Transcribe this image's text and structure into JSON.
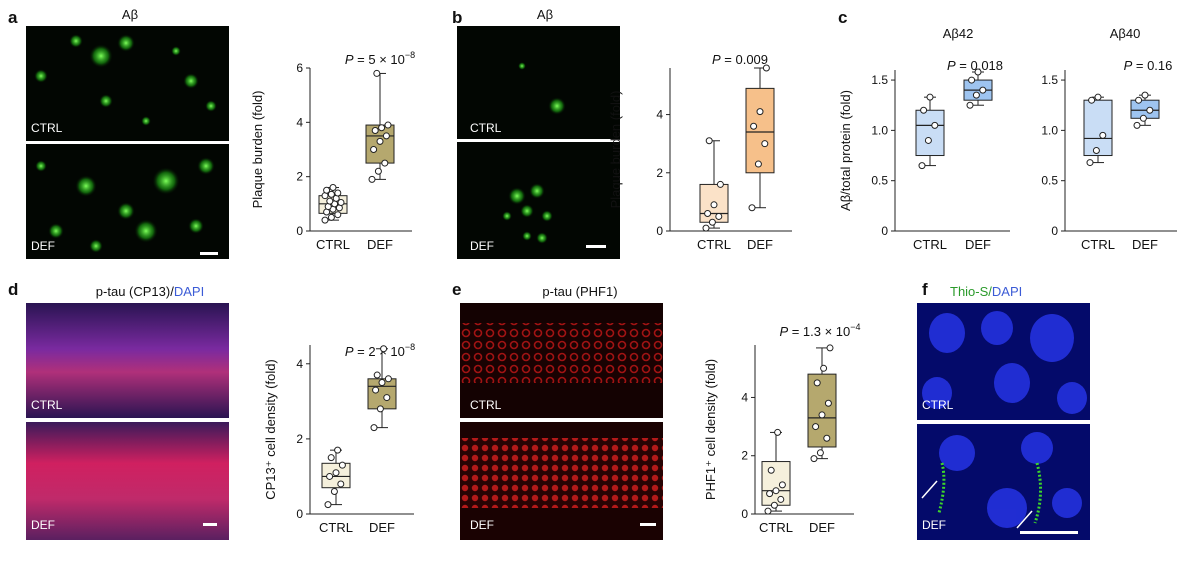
{
  "panels": {
    "a": {
      "letter": "a",
      "title": "Aβ",
      "label_top": "CTRL",
      "label_bottom": "DEF"
    },
    "b": {
      "letter": "b",
      "title": "Aβ",
      "label_top": "CTRL",
      "label_bottom": "DEF"
    },
    "c": {
      "letter": "c"
    },
    "d": {
      "letter": "d",
      "title_main": "p-tau (CP13)/",
      "title_dapi": "DAPI",
      "label_top": "CTRL",
      "label_bottom": "DEF"
    },
    "e": {
      "letter": "e",
      "title": "p-tau (PHF1)",
      "label_top": "CTRL",
      "label_bottom": "DEF"
    },
    "f": {
      "letter": "f",
      "title_thio": "Thio-S/",
      "title_dapi": "DAPI",
      "label_top": "CTRL",
      "label_bottom": "DEF"
    }
  },
  "colors": {
    "green_channel": "#37e020",
    "red_channel": "#e02020",
    "blue_channel": "#2d3cff",
    "dapi_text": "#3b5bd6",
    "thio_text": "#2a9a2a"
  },
  "chart_data": [
    {
      "id": "a",
      "type": "box",
      "ylabel": "Plaque burden (fold)",
      "categories": [
        "CTRL",
        "DEF"
      ],
      "ylim": [
        0,
        6
      ],
      "yticks": [
        0,
        2,
        4,
        6
      ],
      "pvalue": "P = 5 × 10",
      "pvalue_exp": "−8",
      "fill_colors": [
        "#f5f0dc",
        "#b5a86e"
      ],
      "boxes": [
        {
          "min": 0.4,
          "q1": 0.65,
          "median": 1.0,
          "q3": 1.3,
          "max": 1.6,
          "points": [
            0.4,
            0.5,
            0.6,
            0.7,
            0.8,
            0.85,
            0.9,
            1.0,
            1.05,
            1.1,
            1.2,
            1.3,
            1.35,
            1.4,
            1.5,
            1.6
          ]
        },
        {
          "min": 1.9,
          "q1": 2.5,
          "median": 3.5,
          "q3": 3.9,
          "max": 5.8,
          "points": [
            1.9,
            2.2,
            2.5,
            3.0,
            3.3,
            3.5,
            3.7,
            3.8,
            3.9,
            5.8
          ]
        }
      ]
    },
    {
      "id": "b",
      "type": "box",
      "ylabel": "Plaque burden (fold)",
      "categories": [
        "CTRL",
        "DEF"
      ],
      "ylim": [
        0,
        5.6
      ],
      "yticks": [
        0,
        2,
        4
      ],
      "pvalue": "P = 0.009",
      "pvalue_exp": "",
      "fill_colors": [
        "#fbe2c8",
        "#f6c08a"
      ],
      "boxes": [
        {
          "min": 0.1,
          "q1": 0.3,
          "median": 0.6,
          "q3": 1.6,
          "max": 3.1,
          "points": [
            0.1,
            0.3,
            0.5,
            0.6,
            0.9,
            1.6,
            3.1
          ]
        },
        {
          "min": 0.8,
          "q1": 2.0,
          "median": 3.4,
          "q3": 4.9,
          "max": 5.6,
          "points": [
            0.8,
            2.3,
            3.0,
            3.6,
            4.1,
            5.6
          ]
        }
      ]
    },
    {
      "id": "c1",
      "type": "box",
      "title": "Aβ42",
      "ylabel": "Aβ/total protein (fold)",
      "categories": [
        "CTRL",
        "DEF"
      ],
      "ylim": [
        0,
        1.6
      ],
      "yticks": [
        0,
        0.5,
        1.0,
        1.5
      ],
      "pvalue": "P = 0.018",
      "pvalue_exp": "",
      "fill_colors": [
        "#c9ddf5",
        "#9ec4f0"
      ],
      "boxes": [
        {
          "min": 0.65,
          "q1": 0.75,
          "median": 1.05,
          "q3": 1.2,
          "max": 1.33,
          "points": [
            0.65,
            0.9,
            1.05,
            1.2,
            1.33
          ]
        },
        {
          "min": 1.25,
          "q1": 1.3,
          "median": 1.4,
          "q3": 1.5,
          "max": 1.58,
          "points": [
            1.25,
            1.35,
            1.4,
            1.5,
            1.58
          ]
        }
      ]
    },
    {
      "id": "c2",
      "type": "box",
      "title": "Aβ40",
      "ylabel": "",
      "categories": [
        "CTRL",
        "DEF"
      ],
      "ylim": [
        0,
        1.6
      ],
      "yticks": [
        0,
        0.5,
        1.0,
        1.5
      ],
      "pvalue": "P = 0.16",
      "pvalue_exp": "",
      "fill_colors": [
        "#c9ddf5",
        "#9ec4f0"
      ],
      "boxes": [
        {
          "min": 0.68,
          "q1": 0.75,
          "median": 0.92,
          "q3": 1.3,
          "max": 1.33,
          "points": [
            0.68,
            0.8,
            0.95,
            1.3,
            1.33
          ]
        },
        {
          "min": 1.05,
          "q1": 1.12,
          "median": 1.2,
          "q3": 1.3,
          "max": 1.35,
          "points": [
            1.05,
            1.12,
            1.2,
            1.3,
            1.35
          ]
        }
      ]
    },
    {
      "id": "d",
      "type": "box",
      "ylabel": "CP13⁺ cell density (fold)",
      "categories": [
        "CTRL",
        "DEF"
      ],
      "ylim": [
        0,
        4.5
      ],
      "yticks": [
        0,
        2,
        4
      ],
      "pvalue": "P = 2 × 10",
      "pvalue_exp": "−8",
      "fill_colors": [
        "#f5f0dc",
        "#b5a86e"
      ],
      "boxes": [
        {
          "min": 0.25,
          "q1": 0.7,
          "median": 1.0,
          "q3": 1.35,
          "max": 1.7,
          "points": [
            0.25,
            0.6,
            0.8,
            1.0,
            1.1,
            1.3,
            1.5,
            1.7
          ]
        },
        {
          "min": 2.3,
          "q1": 2.8,
          "median": 3.4,
          "q3": 3.6,
          "max": 4.4,
          "points": [
            2.3,
            2.8,
            3.1,
            3.3,
            3.5,
            3.6,
            3.7,
            4.4
          ]
        }
      ]
    },
    {
      "id": "e",
      "type": "box",
      "ylabel": "PHF1⁺ cell density (fold)",
      "categories": [
        "CTRL",
        "DEF"
      ],
      "ylim": [
        0,
        5.8
      ],
      "yticks": [
        0,
        2,
        4
      ],
      "pvalue": "P = 1.3 × 10",
      "pvalue_exp": "−4",
      "fill_colors": [
        "#f5f0dc",
        "#b5a86e"
      ],
      "boxes": [
        {
          "min": 0.1,
          "q1": 0.3,
          "median": 0.8,
          "q3": 1.8,
          "max": 2.8,
          "points": [
            0.1,
            0.3,
            0.5,
            0.7,
            0.8,
            1.0,
            1.5,
            2.8
          ]
        },
        {
          "min": 1.9,
          "q1": 2.3,
          "median": 3.3,
          "q3": 4.8,
          "max": 5.7,
          "points": [
            1.9,
            2.1,
            2.6,
            3.0,
            3.4,
            3.8,
            4.5,
            5.0,
            5.7
          ]
        }
      ]
    }
  ]
}
